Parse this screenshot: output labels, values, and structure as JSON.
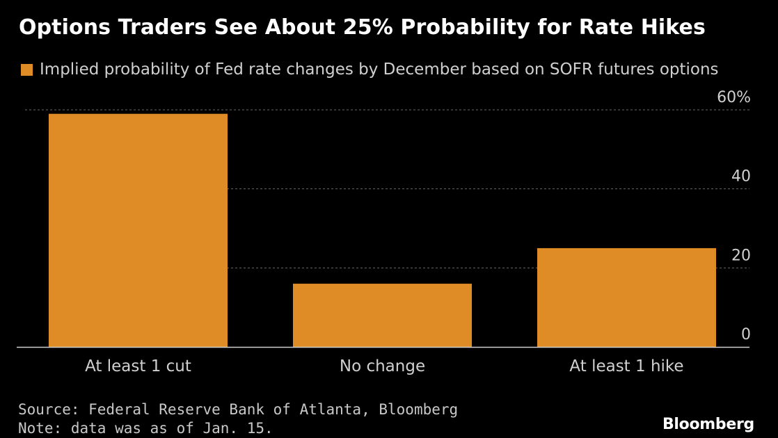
{
  "title": "Options Traders See About 25% Probability for Rate Hikes",
  "legend": {
    "label": "Implied probability of Fed rate changes by December based on SOFR futures options",
    "color": "#e08c26"
  },
  "chart_data": {
    "type": "bar",
    "categories": [
      "At least 1 cut",
      "No change",
      "At least 1 hike"
    ],
    "series": [
      {
        "name": "Implied probability of Fed rate changes by December based on SOFR futures options",
        "values": [
          59,
          16,
          25
        ]
      }
    ],
    "ylim": [
      0,
      60
    ],
    "yticks": [
      0,
      20,
      40,
      60
    ],
    "ytick_labels": [
      "0",
      "20",
      "40",
      "60%"
    ],
    "ytick_side": "right",
    "grid": true,
    "bar_color": "#e08c26"
  },
  "footer": {
    "source": "Source: Federal Reserve Bank of Atlanta, Bloomberg",
    "note": "Note: data was as of Jan. 15."
  },
  "brand": "Bloomberg"
}
